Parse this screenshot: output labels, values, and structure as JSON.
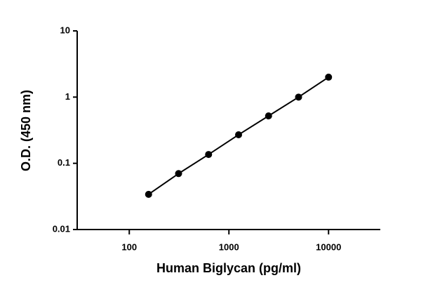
{
  "chart_data": {
    "type": "scatter",
    "x_label": "Human Biglycan (pg/ml)",
    "y_label": "O.D. (450 nm)",
    "x": [
      156.25,
      312.5,
      625,
      1250,
      2500,
      5000,
      10000
    ],
    "series": [
      {
        "color": "#000000",
        "values": [
          0.034,
          0.07,
          0.136,
          0.27,
          0.52,
          1.0,
          2.0
        ]
      }
    ],
    "xlim": [
      30,
      30000
    ],
    "xticks": [
      100,
      1000,
      10000
    ],
    "ylim": [
      0.01,
      10
    ],
    "yticks": [
      0.01,
      0.1,
      1,
      10
    ],
    "x_log": true,
    "y_log": true,
    "connect": true
  }
}
